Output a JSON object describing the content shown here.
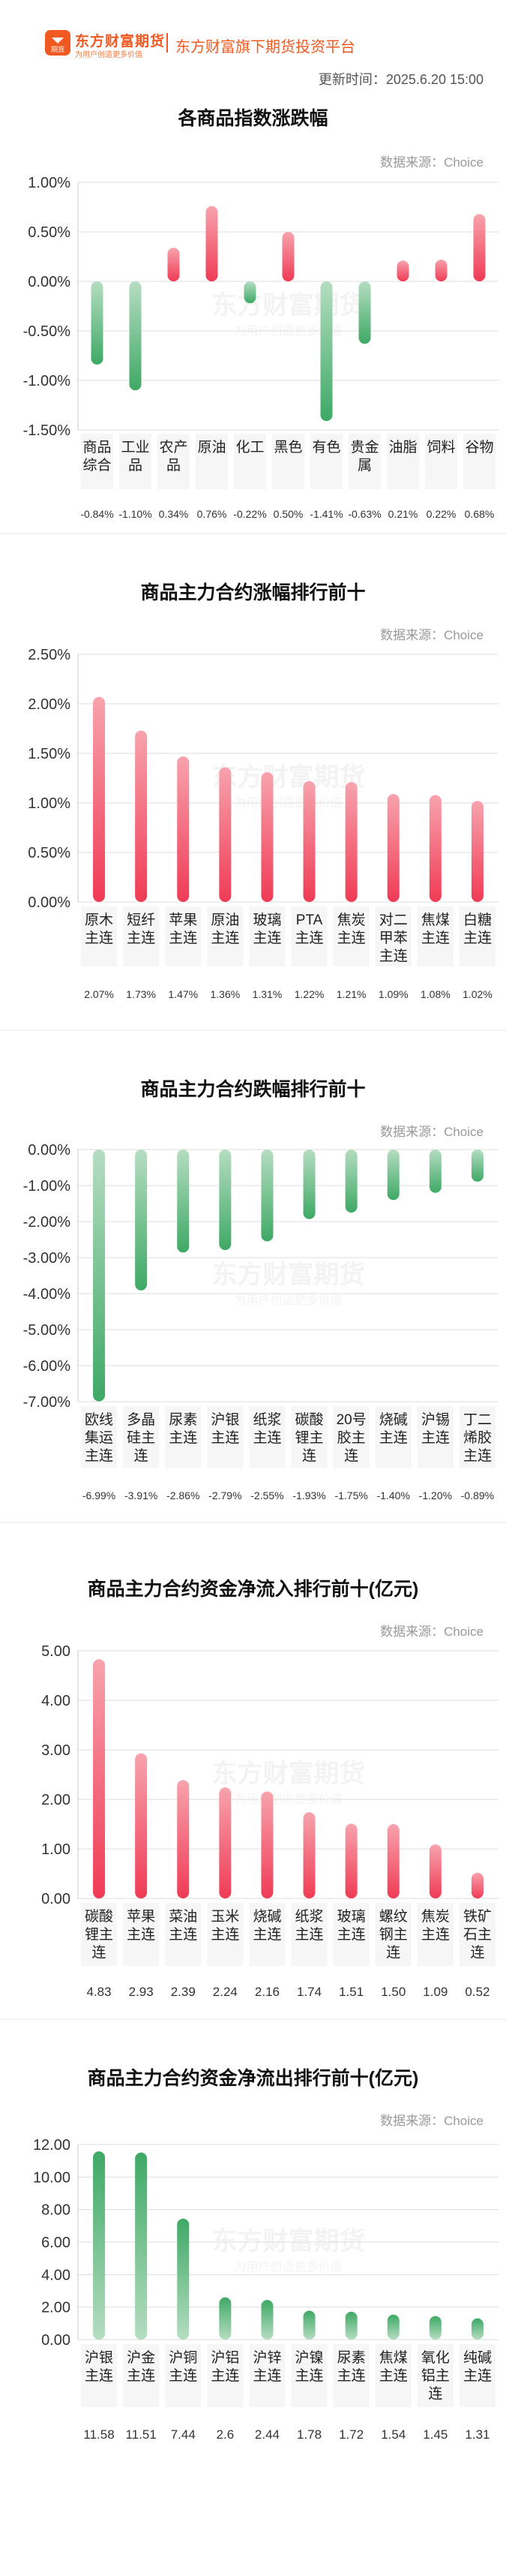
{
  "header": {
    "logo_text": "东方财富期货",
    "logo_slogan": "为用户创造更多价值",
    "logo_badge": "期货",
    "platform": "东方财富旗下期货投资平台",
    "update_time": "更新时间：2025.6.20 15:00"
  },
  "chart_data": [
    {
      "type": "bar",
      "title": "各商品指数涨跌幅",
      "source": "数据来源：Choice",
      "unit": "%",
      "decimals": 2,
      "ylim": [
        -1.5,
        1.0
      ],
      "yticks": [
        1.0,
        0.5,
        0.0,
        -0.5,
        -1.0,
        -1.5
      ],
      "categories": [
        "商品综合",
        "工业品",
        "农产品",
        "原油",
        "化工",
        "黑色",
        "有色",
        "贵金属",
        "油脂",
        "饲料",
        "谷物"
      ],
      "values": [
        -0.84,
        -1.1,
        0.34,
        0.76,
        -0.22,
        0.5,
        -1.41,
        -0.63,
        0.21,
        0.22,
        0.68
      ],
      "value_labels": [
        "-0.84%",
        "-1.10%",
        "0.34%",
        "0.76%",
        "-0.22%",
        "0.50%",
        "-1.41%",
        "-0.63%",
        "0.21%",
        "0.22%",
        "0.68%"
      ]
    },
    {
      "type": "bar",
      "title": "商品主力合约涨幅排行前十",
      "source": "数据来源：Choice",
      "unit": "%",
      "decimals": 2,
      "ylim": [
        0,
        2.5
      ],
      "yticks": [
        2.5,
        2.0,
        1.5,
        1.0,
        0.5,
        0.0
      ],
      "categories": [
        "原木主连",
        "短纤主连",
        "苹果主连",
        "原油主连",
        "玻璃主连",
        "PTA主连",
        "焦炭主连",
        "对二甲苯主连",
        "焦煤主连",
        "白糖主连"
      ],
      "values": [
        2.07,
        1.73,
        1.47,
        1.36,
        1.31,
        1.22,
        1.21,
        1.09,
        1.08,
        1.02
      ],
      "value_labels": [
        "2.07%",
        "1.73%",
        "1.47%",
        "1.36%",
        "1.31%",
        "1.22%",
        "1.21%",
        "1.09%",
        "1.08%",
        "1.02%"
      ]
    },
    {
      "type": "bar",
      "title": "商品主力合约跌幅排行前十",
      "source": "数据来源：Choice",
      "unit": "%",
      "decimals": 2,
      "ylim": [
        -7.0,
        0
      ],
      "yticks": [
        0,
        -1,
        -2,
        -3,
        -4,
        -5,
        -6,
        -7
      ],
      "categories": [
        "欧线集运主连",
        "多晶硅主连",
        "尿素主连",
        "沪银主连",
        "纸浆主连",
        "碳酸锂主连",
        "20号胶主连",
        "烧碱主连",
        "沪锡主连",
        "丁二烯胶主连"
      ],
      "values": [
        -6.99,
        -3.91,
        -2.86,
        -2.79,
        -2.55,
        -1.93,
        -1.75,
        -1.4,
        -1.2,
        -0.89
      ],
      "value_labels": [
        "-6.99%",
        "-3.91%",
        "-2.86%",
        "-2.79%",
        "-2.55%",
        "-1.93%",
        "-1.75%",
        "-1.40%",
        "-1.20%",
        "-0.89%"
      ]
    },
    {
      "type": "bar",
      "title": "商品主力合约资金净流入排行前十(亿元)",
      "source": "数据来源：Choice",
      "unit": "",
      "decimals": 2,
      "ylim": [
        0,
        5.0
      ],
      "yticks": [
        5.0,
        4.0,
        3.0,
        2.0,
        1.0,
        0.0
      ],
      "categories": [
        "碳酸锂主连",
        "苹果主连",
        "菜油主连",
        "玉米主连",
        "烧碱主连",
        "纸浆主连",
        "玻璃主连",
        "螺纹钢主连",
        "焦炭主连",
        "铁矿石主连"
      ],
      "values": [
        4.83,
        2.93,
        2.39,
        2.24,
        2.16,
        1.74,
        1.51,
        1.5,
        1.09,
        0.52
      ],
      "value_labels": [
        "4.83",
        "2.93",
        "2.39",
        "2.24",
        "2.16",
        "1.74",
        "1.51",
        "1.50",
        "1.09",
        "0.52"
      ]
    },
    {
      "type": "bar",
      "title": "商品主力合约资金净流出排行前十(亿元)",
      "source": "数据来源：Choice",
      "unit": "",
      "decimals": 2,
      "ylim": [
        0,
        12.0
      ],
      "yticks": [
        12.0,
        10.0,
        8.0,
        6.0,
        4.0,
        2.0,
        0.0
      ],
      "categories": [
        "沪银主连",
        "沪金主连",
        "沪铜主连",
        "沪铝主连",
        "沪锌主连",
        "沪镍主连",
        "尿素主连",
        "焦煤主连",
        "氧化铝主连",
        "纯碱主连"
      ],
      "values": [
        11.58,
        11.51,
        7.44,
        2.6,
        2.44,
        1.78,
        1.72,
        1.54,
        1.45,
        1.31
      ],
      "value_labels": [
        "11.58",
        "11.51",
        "7.44",
        "2.6",
        "2.44",
        "1.78",
        "1.72",
        "1.54",
        "1.45",
        "1.31"
      ],
      "bar_color": "green"
    }
  ],
  "colors": {
    "red_top": "#f7a3ad",
    "red_bottom": "#f03b55",
    "green_top": "#b5ddc1",
    "green_bottom": "#3ea965",
    "grid": "#dddddd",
    "axis": "#cccccc",
    "watermark": "#f3f3f3"
  },
  "watermark": {
    "text": "东方财富期货",
    "sub": "为用户创造更多价值"
  }
}
